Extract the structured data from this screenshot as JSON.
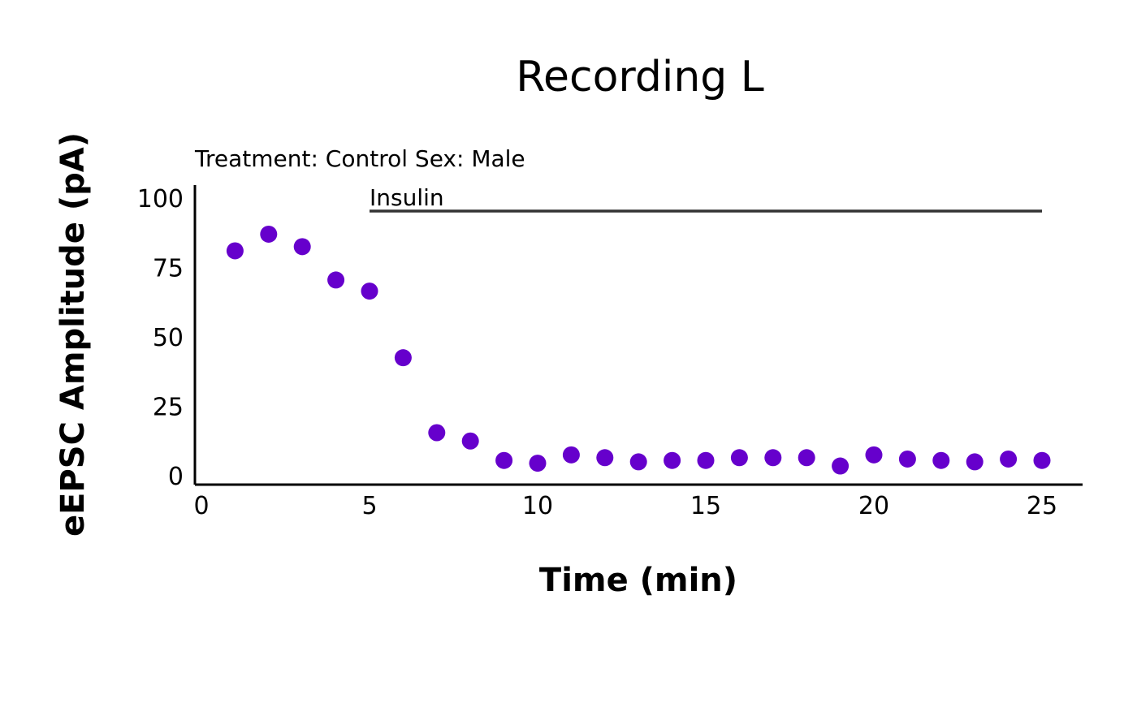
{
  "chart_data": {
    "type": "scatter",
    "title": "Recording L",
    "subtitle": "Treatment: Control  Sex: Male",
    "xlabel": "Time (min)",
    "ylabel": "eEPSC Amplitude (pA)",
    "xlim": [
      0,
      26
    ],
    "ylim": [
      0,
      105
    ],
    "xticks": [
      0,
      5,
      10,
      15,
      20,
      25
    ],
    "yticks": [
      0,
      25,
      50,
      75,
      100
    ],
    "grid": false,
    "point_color": "#6600CC",
    "annotation": {
      "label": "Insulin",
      "x_start": 5,
      "x_end": 25,
      "y": 96,
      "color": "#333333"
    },
    "x": [
      1,
      2,
      3,
      4,
      5,
      6,
      7,
      8,
      9,
      10,
      11,
      12,
      13,
      14,
      15,
      16,
      17,
      18,
      19,
      20,
      21,
      22,
      23,
      24,
      25
    ],
    "y": [
      81.0,
      87.0,
      82.5,
      70.5,
      66.5,
      42.5,
      15.5,
      12.5,
      5.5,
      4.5,
      7.5,
      6.5,
      5.0,
      5.5,
      5.5,
      6.5,
      6.5,
      6.5,
      3.5,
      7.5,
      6.0,
      5.5,
      5.0,
      6.0,
      5.5
    ]
  }
}
